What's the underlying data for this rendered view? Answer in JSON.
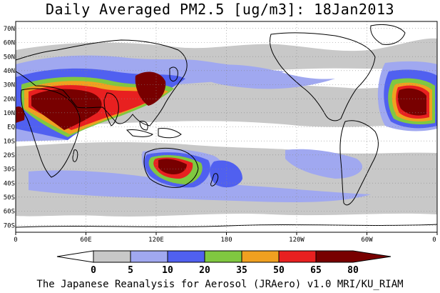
{
  "title": "Daily Averaged PM2.5 [ug/m3]: 18Jan2013",
  "footer": "The Japanese Reanalysis for Aerosol (JRAero) v1.0 MRI/KU_RIAM",
  "map": {
    "lon_range": [
      0,
      360
    ],
    "lat_range": [
      -75,
      75
    ],
    "x_tick_labels": [
      "0",
      "60E",
      "120E",
      "180",
      "120W",
      "60W",
      "0"
    ],
    "y_tick_labels": [
      "70N",
      "60N",
      "50N",
      "40N",
      "30N",
      "20N",
      "10N",
      "EQ",
      "10S",
      "20S",
      "30S",
      "40S",
      "50S",
      "60S",
      "70S"
    ],
    "grid": true
  },
  "colorbar": {
    "levels": [
      "0",
      "5",
      "10",
      "20",
      "35",
      "50",
      "65",
      "80"
    ],
    "colors": [
      "#ffffff",
      "#c8c8c8",
      "#a0a8f0",
      "#5060f0",
      "#80c840",
      "#f0a020",
      "#e82020",
      "#780000"
    ]
  }
}
